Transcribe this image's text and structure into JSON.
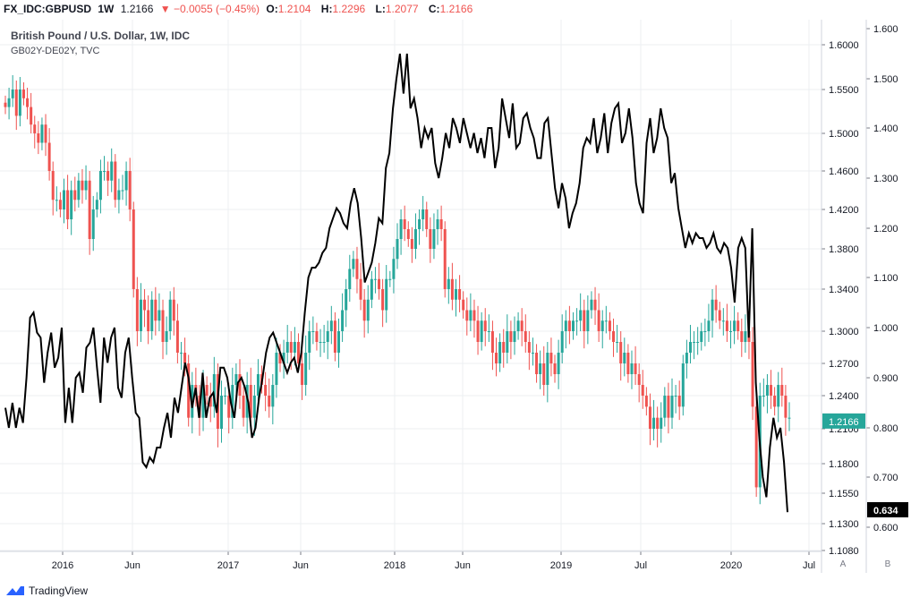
{
  "header": {
    "symbol": "FX_IDC:GBPUSD",
    "interval": "1W",
    "last": "1.2166",
    "change_arrow": "▼",
    "change": "−0.0055 (−0.45%)",
    "o_label": "O:",
    "o": "1.2104",
    "h_label": "H:",
    "h": "1.2296",
    "l_label": "L:",
    "l": "1.2077",
    "c_label": "C:",
    "c": "1.2166"
  },
  "legend": {
    "main": "British Pound / U.S. Dollar, 1W, IDC",
    "overlay": "GB02Y-DE02Y, TVC"
  },
  "footer": {
    "brand": "TradingView",
    "logo_icon": "tradingview-logo-icon"
  },
  "scale_buttons": {
    "a": "A",
    "b": "B"
  },
  "colors": {
    "up": "#26a69a",
    "down": "#ef5350",
    "overlay_line": "#000000",
    "grid": "#eceff2",
    "last_badge": "#26a69a",
    "overlay_badge": "#000000"
  },
  "chart_data": {
    "type": "line",
    "title": "British Pound / U.S. Dollar, 1W, IDC",
    "x_ticks": [
      "2016",
      "Jun",
      "2017",
      "Jun",
      "2018",
      "Jun",
      "2019",
      "Jul",
      "2020",
      "Jul"
    ],
    "x_range": [
      "2015-09",
      "2020-07"
    ],
    "axis_a": {
      "ticks": [
        "1.6000",
        "1.5500",
        "1.5000",
        "1.4600",
        "1.4200",
        "1.3800",
        "1.3400",
        "1.3000",
        "1.2700",
        "1.2400",
        "1.2100",
        "1.1800",
        "1.1550",
        "1.1300",
        "1.1080"
      ],
      "last_value": "1.2166",
      "ylim": [
        1.108,
        1.6
      ]
    },
    "axis_b": {
      "ticks": [
        "1.600",
        "1.500",
        "1.400",
        "1.300",
        "1.200",
        "1.100",
        "1.000",
        "0.900",
        "0.800",
        "0.700",
        "0.600"
      ],
      "last_value": "0.634",
      "ylim": [
        0.55,
        1.6
      ]
    },
    "grid": true,
    "series": [
      {
        "name": "GBPUSD",
        "kind": "candlestick",
        "close_weekly_approx": [
          1.53,
          1.54,
          1.55,
          1.52,
          1.55,
          1.54,
          1.53,
          1.51,
          1.5,
          1.49,
          1.51,
          1.49,
          1.46,
          1.43,
          1.43,
          1.42,
          1.44,
          1.41,
          1.44,
          1.43,
          1.45,
          1.44,
          1.45,
          1.39,
          1.42,
          1.43,
          1.46,
          1.46,
          1.45,
          1.47,
          1.43,
          1.44,
          1.44,
          1.46,
          1.42,
          1.34,
          1.3,
          1.33,
          1.32,
          1.3,
          1.33,
          1.31,
          1.32,
          1.29,
          1.3,
          1.33,
          1.31,
          1.28,
          1.28,
          1.27,
          1.22,
          1.25,
          1.24,
          1.22,
          1.25,
          1.24,
          1.23,
          1.26,
          1.21,
          1.24,
          1.24,
          1.22,
          1.25,
          1.26,
          1.24,
          1.22,
          1.25,
          1.22,
          1.24,
          1.26,
          1.25,
          1.24,
          1.23,
          1.25,
          1.28,
          1.27,
          1.28,
          1.29,
          1.28,
          1.29,
          1.27,
          1.25,
          1.28,
          1.3,
          1.3,
          1.29,
          1.29,
          1.29,
          1.3,
          1.31,
          1.28,
          1.3,
          1.32,
          1.34,
          1.36,
          1.37,
          1.35,
          1.33,
          1.31,
          1.33,
          1.35,
          1.35,
          1.34,
          1.32,
          1.35,
          1.35,
          1.37,
          1.39,
          1.41,
          1.4,
          1.39,
          1.38,
          1.4,
          1.41,
          1.42,
          1.4,
          1.38,
          1.4,
          1.41,
          1.4,
          1.34,
          1.35,
          1.33,
          1.34,
          1.33,
          1.32,
          1.31,
          1.32,
          1.31,
          1.29,
          1.31,
          1.3,
          1.3,
          1.28,
          1.27,
          1.29,
          1.28,
          1.3,
          1.29,
          1.3,
          1.31,
          1.3,
          1.29,
          1.28,
          1.28,
          1.26,
          1.27,
          1.25,
          1.28,
          1.27,
          1.26,
          1.28,
          1.3,
          1.31,
          1.3,
          1.31,
          1.31,
          1.32,
          1.3,
          1.32,
          1.33,
          1.32,
          1.3,
          1.31,
          1.31,
          1.3,
          1.29,
          1.29,
          1.27,
          1.28,
          1.26,
          1.27,
          1.26,
          1.25,
          1.24,
          1.23,
          1.21,
          1.22,
          1.21,
          1.22,
          1.24,
          1.22,
          1.24,
          1.24,
          1.23,
          1.27,
          1.28,
          1.29,
          1.29,
          1.29,
          1.3,
          1.3,
          1.31,
          1.33,
          1.32,
          1.31,
          1.31,
          1.3,
          1.3,
          1.31,
          1.3,
          1.29,
          1.3,
          1.29,
          1.23,
          1.16,
          1.24,
          1.24,
          1.25,
          1.24,
          1.23,
          1.25,
          1.24,
          1.22,
          1.22
        ]
      },
      {
        "name": "GB02Y-DE02Y",
        "kind": "line",
        "values_weekly_approx": [
          0.84,
          0.8,
          0.85,
          0.8,
          0.84,
          0.81,
          0.9,
          1.02,
          1.03,
          0.99,
          0.98,
          0.89,
          0.95,
          0.99,
          0.92,
          0.94,
          1.0,
          0.81,
          0.88,
          0.81,
          0.9,
          0.91,
          0.87,
          0.96,
          0.97,
          1.0,
          0.92,
          0.85,
          0.98,
          0.93,
          0.98,
          1.0,
          0.88,
          0.86,
          0.95,
          0.98,
          0.9,
          0.83,
          0.82,
          0.73,
          0.72,
          0.74,
          0.73,
          0.76,
          0.76,
          0.8,
          0.83,
          0.78,
          0.86,
          0.83,
          0.88,
          0.93,
          0.9,
          0.84,
          0.88,
          0.82,
          0.91,
          0.82,
          0.86,
          0.87,
          0.83,
          0.92,
          0.92,
          0.9,
          0.85,
          0.82,
          0.89,
          0.9,
          0.88,
          0.85,
          0.78,
          0.8,
          0.86,
          0.9,
          0.95,
          0.98,
          0.99,
          0.97,
          0.95,
          0.93,
          0.91,
          0.93,
          0.94,
          0.91,
          0.95,
          1.03,
          1.1,
          1.12,
          1.12,
          1.13,
          1.15,
          1.16,
          1.2,
          1.22,
          1.24,
          1.23,
          1.21,
          1.2,
          1.25,
          1.28,
          1.25,
          1.18,
          1.09,
          1.11,
          1.13,
          1.17,
          1.22,
          1.21,
          1.32,
          1.35,
          1.44,
          1.5,
          1.55,
          1.47,
          1.55,
          1.44,
          1.46,
          1.42,
          1.36,
          1.4,
          1.38,
          1.4,
          1.33,
          1.3,
          1.34,
          1.39,
          1.36,
          1.42,
          1.4,
          1.37,
          1.42,
          1.39,
          1.36,
          1.39,
          1.35,
          1.38,
          1.34,
          1.4,
          1.4,
          1.32,
          1.36,
          1.46,
          1.42,
          1.38,
          1.45,
          1.36,
          1.37,
          1.42,
          1.43,
          1.4,
          1.38,
          1.34,
          1.34,
          1.41,
          1.42,
          1.35,
          1.28,
          1.24,
          1.29,
          1.26,
          1.2,
          1.23,
          1.25,
          1.29,
          1.36,
          1.38,
          1.37,
          1.42,
          1.35,
          1.38,
          1.43,
          1.35,
          1.41,
          1.44,
          1.45,
          1.37,
          1.39,
          1.44,
          1.38,
          1.29,
          1.25,
          1.23,
          1.37,
          1.42,
          1.35,
          1.38,
          1.44,
          1.4,
          1.38,
          1.29,
          1.31,
          1.24,
          1.2,
          1.16,
          1.19,
          1.17,
          1.19,
          1.18,
          1.18,
          1.16,
          1.17,
          1.19,
          1.16,
          1.15,
          1.17,
          1.16,
          1.12,
          1.05,
          1.16,
          1.18,
          1.16,
          0.98,
          1.2,
          0.89,
          0.78,
          0.7,
          0.66,
          0.76,
          0.82,
          0.78,
          0.8,
          0.73,
          0.63
        ]
      }
    ]
  }
}
